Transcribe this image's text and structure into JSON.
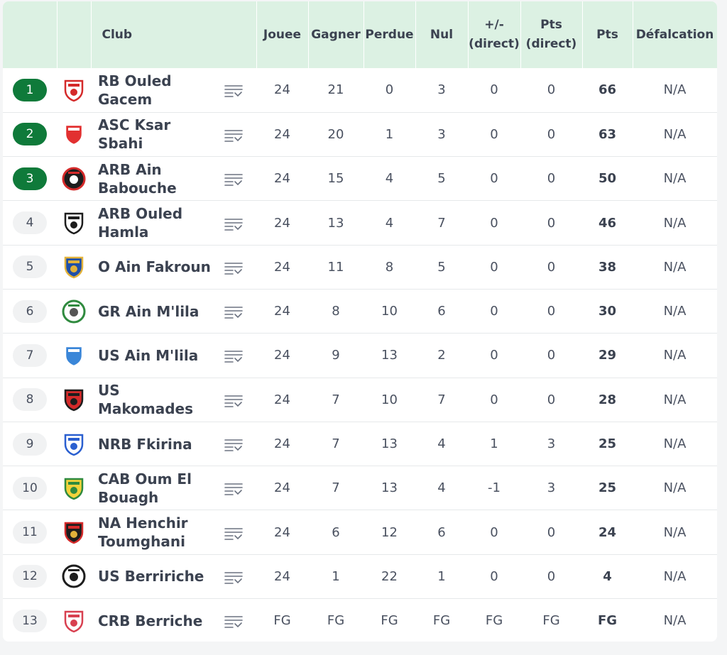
{
  "headers": {
    "club": "Club",
    "joue": "Jouee",
    "gagner": "Gagner",
    "perdue": "Perdue",
    "nul": "Nul",
    "diff_direct_line1": "+/-",
    "diff_direct_line2": "(direct)",
    "pts_direct_line1": "Pts",
    "pts_direct_line2": "(direct)",
    "pts": "Pts",
    "defalcation": "Défalcation"
  },
  "colors": {
    "qualified": "#0f7a3a",
    "header_bg": "#dcf1e3"
  },
  "rows": [
    {
      "rank": "1",
      "qualified": true,
      "name": "RB Ouled\nGacem",
      "logo": "shield-red-white",
      "joue": "24",
      "gagner": "21",
      "perdue": "0",
      "nul": "3",
      "diff": "0",
      "pts_direct": "0",
      "pts": "66",
      "defalcation": "N/A"
    },
    {
      "rank": "2",
      "qualified": true,
      "name": "ASC Ksar\nSbahi",
      "logo": "shield-red-stripes",
      "joue": "24",
      "gagner": "20",
      "perdue": "1",
      "nul": "3",
      "diff": "0",
      "pts_direct": "0",
      "pts": "63",
      "defalcation": "N/A"
    },
    {
      "rank": "3",
      "qualified": true,
      "name": "ARB Ain\nBabouche",
      "logo": "round-red-black",
      "joue": "24",
      "gagner": "15",
      "perdue": "4",
      "nul": "5",
      "diff": "0",
      "pts_direct": "0",
      "pts": "50",
      "defalcation": "N/A"
    },
    {
      "rank": "4",
      "qualified": false,
      "name": "ARB Ouled\nHamla",
      "logo": "shield-black-white",
      "joue": "24",
      "gagner": "13",
      "perdue": "4",
      "nul": "7",
      "diff": "0",
      "pts_direct": "0",
      "pts": "46",
      "defalcation": "N/A"
    },
    {
      "rank": "5",
      "qualified": false,
      "name": "O Ain Fakroun",
      "logo": "shield-blue-gold",
      "joue": "24",
      "gagner": "11",
      "perdue": "8",
      "nul": "5",
      "diff": "0",
      "pts_direct": "0",
      "pts": "38",
      "defalcation": "N/A"
    },
    {
      "rank": "6",
      "qualified": false,
      "name": "GR Ain M'lila",
      "logo": "round-green-white",
      "joue": "24",
      "gagner": "8",
      "perdue": "10",
      "nul": "6",
      "diff": "0",
      "pts_direct": "0",
      "pts": "30",
      "defalcation": "N/A"
    },
    {
      "rank": "7",
      "qualified": false,
      "name": "US Ain M'lila",
      "logo": "shield-light-blue",
      "joue": "24",
      "gagner": "9",
      "perdue": "13",
      "nul": "2",
      "diff": "0",
      "pts_direct": "0",
      "pts": "29",
      "defalcation": "N/A"
    },
    {
      "rank": "8",
      "qualified": false,
      "name": "US\nMakomades",
      "logo": "shield-red-black",
      "joue": "24",
      "gagner": "7",
      "perdue": "10",
      "nul": "7",
      "diff": "0",
      "pts_direct": "0",
      "pts": "28",
      "defalcation": "N/A"
    },
    {
      "rank": "9",
      "qualified": false,
      "name": "NRB Fkirina",
      "logo": "shield-blue-white",
      "joue": "24",
      "gagner": "7",
      "perdue": "13",
      "nul": "4",
      "diff": "1",
      "pts_direct": "3",
      "pts": "25",
      "defalcation": "N/A"
    },
    {
      "rank": "10",
      "qualified": false,
      "name": "CAB Oum El\nBouagh",
      "logo": "shield-yellow-green",
      "joue": "24",
      "gagner": "7",
      "perdue": "13",
      "nul": "4",
      "diff": "-1",
      "pts_direct": "3",
      "pts": "25",
      "defalcation": "N/A"
    },
    {
      "rank": "11",
      "qualified": false,
      "name": "NA Henchir\nToumghani",
      "logo": "eagle-red-black",
      "joue": "24",
      "gagner": "6",
      "perdue": "12",
      "nul": "6",
      "diff": "0",
      "pts_direct": "0",
      "pts": "24",
      "defalcation": "N/A"
    },
    {
      "rank": "12",
      "qualified": false,
      "name": "US Berririche",
      "logo": "ball-laurel",
      "joue": "24",
      "gagner": "1",
      "perdue": "22",
      "nul": "1",
      "diff": "0",
      "pts_direct": "0",
      "pts": "4",
      "defalcation": "N/A"
    },
    {
      "rank": "13",
      "qualified": false,
      "name": "CRB Berriche",
      "logo": "shield-red-white-2",
      "joue": "FG",
      "gagner": "FG",
      "perdue": "FG",
      "nul": "FG",
      "diff": "FG",
      "pts_direct": "FG",
      "pts": "FG",
      "defalcation": "N/A"
    }
  ]
}
